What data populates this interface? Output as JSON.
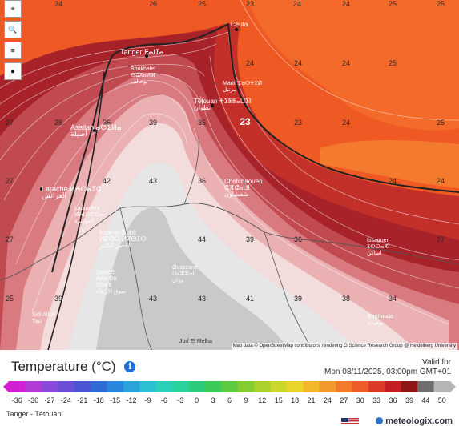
{
  "toolbar": {
    "items": [
      {
        "name": "location-pin-icon",
        "glyph": "⌖"
      },
      {
        "name": "zoom-icon",
        "glyph": "🔍"
      },
      {
        "name": "layers-icon",
        "glyph": "≡"
      },
      {
        "name": "record-dot-icon",
        "glyph": "●"
      }
    ]
  },
  "map": {
    "cities": [
      {
        "id": "ceuta",
        "name": "Ceuta"
      },
      {
        "id": "tanger",
        "name": "Tanger ⵟⴰⵏⵊⴰ"
      },
      {
        "id": "boukhalef",
        "name": "Boukhalef\nⴱⵓⵅⴰⵍⴼ\nبوخالف"
      },
      {
        "id": "martil",
        "name": "Martil ⵎⴰⵔⵜⵉⵍ\nمرتيل"
      },
      {
        "id": "tetouan",
        "name": "Tétouan ⵜⵉⵟⵟⴰⵡⵉⵏ\nتطوان"
      },
      {
        "id": "assilah",
        "name": "Assilah ⴰⵚⵉⵍⴰ\nأصيلة"
      },
      {
        "id": "larache",
        "name": "Larache ⵍⵄⵔⴰⵢⵛ\nالعرائش"
      },
      {
        "id": "chefchaouen",
        "name": "Chefchaouen\nⵛⴼⵛⴰⵡⵏ\nشفشاون"
      },
      {
        "id": "laouamra",
        "name": "Laouamra\nⵍⵄⵡⴰⵎⵔⴰ\nالعوامرة"
      },
      {
        "id": "ksar",
        "name": "Ksar-el-Kebir\nⵍⵇⵚⵔ ⵍⴽⴱⵉⵔ\nالقصر الكبير"
      },
      {
        "id": "souk",
        "name": "Souk El\nArba Du\nGharb\nسوق الأربعاء"
      },
      {
        "id": "ouazzane",
        "name": "Ouazzane\nⵡⴰⵣⵣⴰⵏ\nوزان"
      },
      {
        "id": "issaguen",
        "name": "Issaguen\nⵉⵙⵙⴰⴳⵏ\nاساكن"
      },
      {
        "id": "sidi",
        "name": "Sidi Allal\nTazi"
      },
      {
        "id": "bouhouda",
        "name": "Bouhouda\nبوهودة"
      },
      {
        "id": "jorf",
        "name": "Jorf El Melha"
      }
    ],
    "temps": [
      {
        "id": "t1",
        "v": "24"
      },
      {
        "id": "t2",
        "v": "26"
      },
      {
        "id": "t3",
        "v": "25"
      },
      {
        "id": "t4",
        "v": "23"
      },
      {
        "id": "t5",
        "v": "24"
      },
      {
        "id": "t6",
        "v": "24"
      },
      {
        "id": "t7",
        "v": "25"
      },
      {
        "id": "t8",
        "v": "25"
      },
      {
        "id": "t9",
        "v": "24"
      },
      {
        "id": "t10",
        "v": "24"
      },
      {
        "id": "t11",
        "v": "24"
      },
      {
        "id": "t12",
        "v": "25"
      },
      {
        "id": "t13",
        "v": "27"
      },
      {
        "id": "t14",
        "v": "28"
      },
      {
        "id": "t15",
        "v": "36"
      },
      {
        "id": "t16",
        "v": "39"
      },
      {
        "id": "t17",
        "v": "35"
      },
      {
        "id": "t18",
        "v": "23"
      },
      {
        "id": "t19",
        "v": "23"
      },
      {
        "id": "t20",
        "v": "24"
      },
      {
        "id": "t21",
        "v": "25"
      },
      {
        "id": "t22",
        "v": "27"
      },
      {
        "id": "t23",
        "v": "42"
      },
      {
        "id": "t24",
        "v": "43"
      },
      {
        "id": "t25",
        "v": "36"
      },
      {
        "id": "t26",
        "v": "24"
      },
      {
        "id": "t27",
        "v": "24"
      },
      {
        "id": "t28",
        "v": "27"
      },
      {
        "id": "t29",
        "v": "44"
      },
      {
        "id": "t30",
        "v": "39"
      },
      {
        "id": "t31",
        "v": "36"
      },
      {
        "id": "t32",
        "v": "27"
      },
      {
        "id": "t33",
        "v": "25"
      },
      {
        "id": "t34",
        "v": "39"
      },
      {
        "id": "t35",
        "v": "43"
      },
      {
        "id": "t36",
        "v": "43"
      },
      {
        "id": "t37",
        "v": "41"
      },
      {
        "id": "t38",
        "v": "39"
      },
      {
        "id": "t39",
        "v": "38"
      },
      {
        "id": "t40",
        "v": "34"
      }
    ],
    "highlight_temp": "23",
    "attribution": "Map data © OpenStreetMap contributors, rendering GIScience Research Group @ Heidelberg University"
  },
  "legend": {
    "title": "Temperature",
    "unit": "(°C)",
    "valid_label": "Valid for",
    "valid_date": "Mon 08/11/2025, 03:00pm GMT+01",
    "scale_values": [
      "-36",
      "-30",
      "-27",
      "-24",
      "-21",
      "-18",
      "-15",
      "-12",
      "-9",
      "-6",
      "-3",
      "0",
      "3",
      "6",
      "9",
      "12",
      "15",
      "18",
      "21",
      "24",
      "27",
      "30",
      "33",
      "36",
      "39",
      "44",
      "50"
    ],
    "scale_colors": [
      "#d11fd1",
      "#b23bd6",
      "#8a49d8",
      "#6a4fd6",
      "#4b55d4",
      "#2f6ad6",
      "#2a86da",
      "#2aa3d9",
      "#2ac0cf",
      "#2ad1b8",
      "#2ad19a",
      "#2acb7a",
      "#3bc95a",
      "#5cc93e",
      "#85cc2e",
      "#aad22a",
      "#cbd82a",
      "#e7d52a",
      "#f2b82a",
      "#f39a2a",
      "#f27a2a",
      "#ef5a2a",
      "#de3a2a",
      "#c41e23",
      "#8e1616",
      "#6e6e6e",
      "#b5b5b5"
    ],
    "region": "Tanger - Tétouan",
    "brand": "meteologix.com"
  },
  "colors": {
    "sea": "#ee5a24",
    "hot_band": "#b8282a"
  }
}
